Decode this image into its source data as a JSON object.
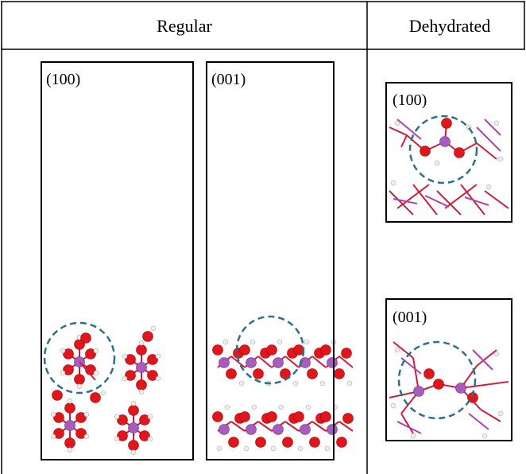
{
  "header": {
    "regular": "Regular",
    "dehydrated": "Dehydrated"
  },
  "panels": [
    {
      "label": "(100)"
    },
    {
      "label": "(001)"
    },
    {
      "label": "(100)"
    },
    {
      "label": "(001)"
    }
  ]
}
